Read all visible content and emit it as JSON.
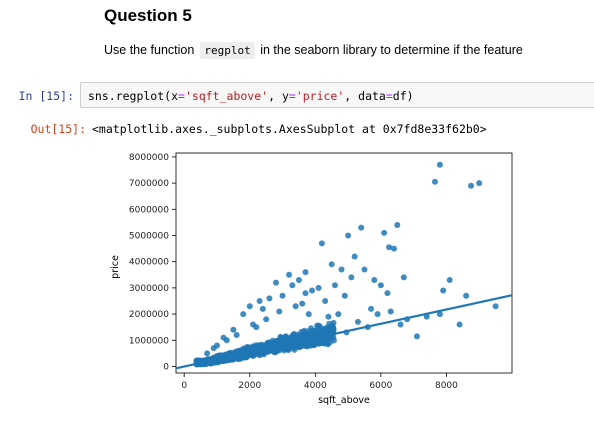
{
  "cell_heading": "Question 5",
  "prose": {
    "before": "Use the function",
    "code": "regplot",
    "after": "in the seaborn library to determine if the feature"
  },
  "input_cell": {
    "prompt": "In [15]:",
    "code": {
      "call": "sns.regplot",
      "open_paren": "(",
      "arg1_name": "x",
      "eq": "=",
      "arg1_value": "'sqft_above'",
      "sep1": ", ",
      "arg2_name": "y",
      "arg2_value": "'price'",
      "sep2": ", ",
      "arg3_name": "data",
      "arg3_value": "df",
      "close_paren": ")"
    }
  },
  "output_cell": {
    "prompt": "Out[15]:",
    "text": "<matplotlib.axes._subplots.AxesSubplot at 0x7fd8e33f62b0>"
  },
  "colors": {
    "scatter": "#1f77b4",
    "regression_line": "#1f77b4",
    "in_prompt": "#303f9f",
    "out_prompt": "#d84315"
  },
  "chart_data": {
    "type": "scatter",
    "xlabel": "sqft_above",
    "ylabel": "price",
    "xlim": [
      -250,
      10000
    ],
    "ylim": [
      -250000,
      8150000
    ],
    "xticks": [
      0,
      2000,
      4000,
      6000,
      8000
    ],
    "xtick_labels": [
      "0",
      "2000",
      "4000",
      "6000",
      "8000"
    ],
    "yticks": [
      0,
      1000000,
      2000000,
      3000000,
      4000000,
      5000000,
      6000000,
      7000000,
      8000000
    ],
    "ytick_labels": [
      "0",
      "1000000",
      "2000000",
      "3000000",
      "4000000",
      "5000000",
      "6000000",
      "7000000",
      "8000000"
    ],
    "grid": false,
    "regression_line": {
      "x": [
        -250,
        10000
      ],
      "y": [
        -70000,
        2720000
      ]
    },
    "points": {
      "x": [
        7800,
        8750,
        9000,
        7650,
        5400,
        6100,
        4200,
        6500,
        5000,
        6250,
        5200,
        6400,
        4800,
        3700,
        3200,
        3500,
        2800,
        3300,
        4500,
        5500,
        5100,
        4100,
        3900,
        6000,
        6700,
        7400,
        8100,
        8600,
        7900,
        9500,
        7800,
        8400,
        6200,
        5800,
        4600,
        2600,
        2300,
        3000,
        2000,
        1800,
        2400,
        3700,
        4300,
        4900,
        5900,
        6300,
        6800,
        7100,
        5600,
        4700,
        3600,
        2100,
        1500,
        1200,
        900,
        700,
        1000,
        1300,
        1600,
        2200,
        2500,
        2900,
        3400,
        3800,
        4400,
        5300,
        6600,
        5700,
        4950,
        3100
      ],
      "y": [
        7700000,
        6900000,
        7000000,
        7050000,
        5300000,
        5100000,
        4700000,
        5400000,
        5000000,
        4550000,
        4200000,
        4500000,
        3700000,
        3600000,
        3500000,
        3300000,
        3200000,
        3100000,
        3900000,
        3700000,
        3400000,
        3000000,
        2900000,
        3100000,
        3400000,
        1900000,
        3300000,
        2700000,
        2900000,
        2300000,
        2000000,
        1600000,
        2800000,
        3300000,
        3100000,
        2600000,
        2500000,
        2700000,
        2300000,
        2000000,
        2200000,
        2800000,
        2500000,
        2700000,
        2000000,
        2100000,
        1800000,
        1150000,
        1500000,
        2000000,
        2400000,
        1600000,
        1400000,
        1100000,
        700000,
        500000,
        800000,
        1000000,
        1200000,
        1500000,
        1800000,
        2100000,
        2300000,
        2000000,
        1900000,
        1700000,
        1600000,
        2200000,
        1300000,
        1000000
      ]
    }
  }
}
